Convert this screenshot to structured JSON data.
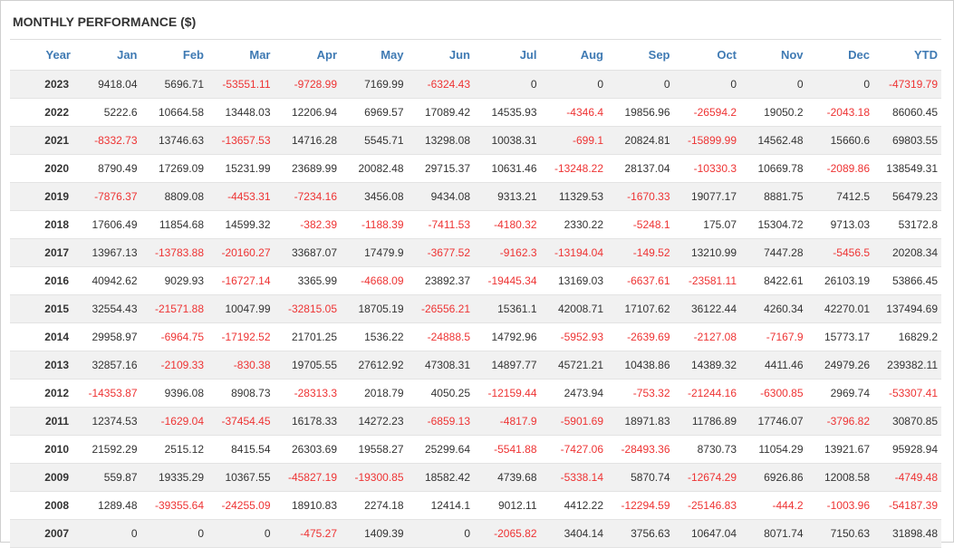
{
  "title": "MONTHLY PERFORMANCE ($)",
  "headers": [
    "Year",
    "Jan",
    "Feb",
    "Mar",
    "Apr",
    "May",
    "Jun",
    "Jul",
    "Aug",
    "Sep",
    "Oct",
    "Nov",
    "Dec",
    "YTD"
  ],
  "colors": {
    "header": "#3f7ab3",
    "negative": "#ee3333",
    "positive": "#333333",
    "row_alt": "#f1f1f1"
  },
  "rows": [
    [
      "2023",
      "9418.04",
      "5696.71",
      "-53551.11",
      "-9728.99",
      "7169.99",
      "-6324.43",
      "0",
      "0",
      "0",
      "0",
      "0",
      "0",
      "-47319.79"
    ],
    [
      "2022",
      "5222.6",
      "10664.58",
      "13448.03",
      "12206.94",
      "6969.57",
      "17089.42",
      "14535.93",
      "-4346.4",
      "19856.96",
      "-26594.2",
      "19050.2",
      "-2043.18",
      "86060.45"
    ],
    [
      "2021",
      "-8332.73",
      "13746.63",
      "-13657.53",
      "14716.28",
      "5545.71",
      "13298.08",
      "10038.31",
      "-699.1",
      "20824.81",
      "-15899.99",
      "14562.48",
      "15660.6",
      "69803.55"
    ],
    [
      "2020",
      "8790.49",
      "17269.09",
      "15231.99",
      "23689.99",
      "20082.48",
      "29715.37",
      "10631.46",
      "-13248.22",
      "28137.04",
      "-10330.3",
      "10669.78",
      "-2089.86",
      "138549.31"
    ],
    [
      "2019",
      "-7876.37",
      "8809.08",
      "-4453.31",
      "-7234.16",
      "3456.08",
      "9434.08",
      "9313.21",
      "11329.53",
      "-1670.33",
      "19077.17",
      "8881.75",
      "7412.5",
      "56479.23"
    ],
    [
      "2018",
      "17606.49",
      "11854.68",
      "14599.32",
      "-382.39",
      "-1188.39",
      "-7411.53",
      "-4180.32",
      "2330.22",
      "-5248.1",
      "175.07",
      "15304.72",
      "9713.03",
      "53172.8"
    ],
    [
      "2017",
      "13967.13",
      "-13783.88",
      "-20160.27",
      "33687.07",
      "17479.9",
      "-3677.52",
      "-9162.3",
      "-13194.04",
      "-149.52",
      "13210.99",
      "7447.28",
      "-5456.5",
      "20208.34"
    ],
    [
      "2016",
      "40942.62",
      "9029.93",
      "-16727.14",
      "3365.99",
      "-4668.09",
      "23892.37",
      "-19445.34",
      "13169.03",
      "-6637.61",
      "-23581.11",
      "8422.61",
      "26103.19",
      "53866.45"
    ],
    [
      "2015",
      "32554.43",
      "-21571.88",
      "10047.99",
      "-32815.05",
      "18705.19",
      "-26556.21",
      "15361.1",
      "42008.71",
      "17107.62",
      "36122.44",
      "4260.34",
      "42270.01",
      "137494.69"
    ],
    [
      "2014",
      "29958.97",
      "-6964.75",
      "-17192.52",
      "21701.25",
      "1536.22",
      "-24888.5",
      "14792.96",
      "-5952.93",
      "-2639.69",
      "-2127.08",
      "-7167.9",
      "15773.17",
      "16829.2"
    ],
    [
      "2013",
      "32857.16",
      "-2109.33",
      "-830.38",
      "19705.55",
      "27612.92",
      "47308.31",
      "14897.77",
      "45721.21",
      "10438.86",
      "14389.32",
      "4411.46",
      "24979.26",
      "239382.11"
    ],
    [
      "2012",
      "-14353.87",
      "9396.08",
      "8908.73",
      "-28313.3",
      "2018.79",
      "4050.25",
      "-12159.44",
      "2473.94",
      "-753.32",
      "-21244.16",
      "-6300.85",
      "2969.74",
      "-53307.41"
    ],
    [
      "2011",
      "12374.53",
      "-1629.04",
      "-37454.45",
      "16178.33",
      "14272.23",
      "-6859.13",
      "-4817.9",
      "-5901.69",
      "18971.83",
      "11786.89",
      "17746.07",
      "-3796.82",
      "30870.85"
    ],
    [
      "2010",
      "21592.29",
      "2515.12",
      "8415.54",
      "26303.69",
      "19558.27",
      "25299.64",
      "-5541.88",
      "-7427.06",
      "-28493.36",
      "8730.73",
      "11054.29",
      "13921.67",
      "95928.94"
    ],
    [
      "2009",
      "559.87",
      "19335.29",
      "10367.55",
      "-45827.19",
      "-19300.85",
      "18582.42",
      "4739.68",
      "-5338.14",
      "5870.74",
      "-12674.29",
      "6926.86",
      "12008.58",
      "-4749.48"
    ],
    [
      "2008",
      "1289.48",
      "-39355.64",
      "-24255.09",
      "18910.83",
      "2274.18",
      "12414.1",
      "9012.11",
      "4412.22",
      "-12294.59",
      "-25146.83",
      "-444.2",
      "-1003.96",
      "-54187.39"
    ],
    [
      "2007",
      "0",
      "0",
      "0",
      "-475.27",
      "1409.39",
      "0",
      "-2065.82",
      "3404.14",
      "3756.63",
      "10647.04",
      "8071.74",
      "7150.63",
      "31898.48"
    ]
  ]
}
